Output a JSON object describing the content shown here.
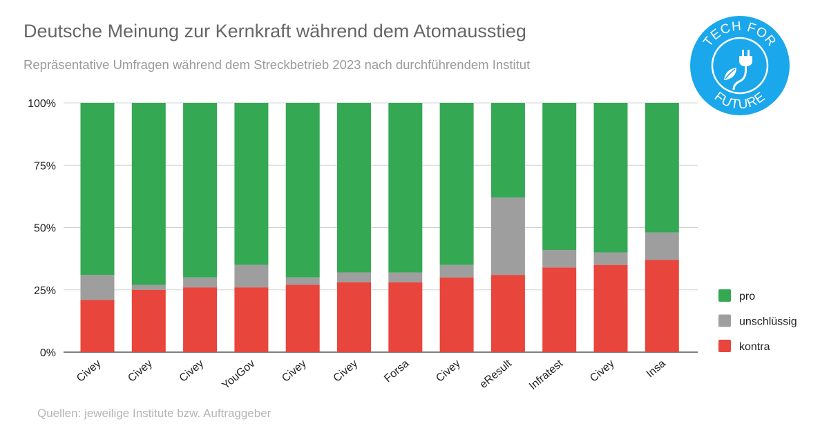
{
  "header": {
    "title": "Deutsche Meinung zur Kernkraft während dem Atomausstieg",
    "subtitle": "Repräsentative Umfragen während dem Streckbetrieb 2023 nach durchführendem Institut"
  },
  "footer": {
    "source": "Quellen: jeweilige Institute bzw. Auftraggeber"
  },
  "logo": {
    "text_top": "TECH FOR",
    "text_bottom": "FUTURE",
    "color": "#1aa7ec",
    "icon": "plug-leaf-icon"
  },
  "chart_data": {
    "type": "bar",
    "stacked": true,
    "title": "Deutsche Meinung zur Kernkraft während dem Atomausstieg",
    "subtitle": "Repräsentative Umfragen während dem Streckbetrieb 2023 nach durchführendem Institut",
    "xlabel": "",
    "ylabel": "",
    "ylim": [
      0,
      100
    ],
    "yticks": [
      0,
      25,
      50,
      75,
      100
    ],
    "ytick_labels": [
      "0%",
      "25%",
      "50%",
      "75%",
      "100%"
    ],
    "grid": true,
    "legend_position": "right",
    "categories": [
      "Civey",
      "Civey",
      "Civey",
      "YouGov",
      "Civey",
      "Civey",
      "Forsa",
      "Civey",
      "eResult",
      "Infratest",
      "Civey",
      "Insa"
    ],
    "series": [
      {
        "name": "kontra",
        "color": "#e8453c",
        "values": [
          21,
          25,
          26,
          26,
          27,
          28,
          28,
          30,
          31,
          34,
          35,
          37
        ]
      },
      {
        "name": "unschlüssig",
        "color": "#9e9e9e",
        "values": [
          10,
          2,
          4,
          9,
          3,
          4,
          4,
          5,
          31,
          7,
          5,
          11
        ]
      },
      {
        "name": "pro",
        "color": "#34a853",
        "values": [
          69,
          73,
          70,
          65,
          70,
          68,
          68,
          65,
          38,
          59,
          60,
          52
        ]
      }
    ],
    "legend_order": [
      "pro",
      "unschlüssig",
      "kontra"
    ]
  }
}
